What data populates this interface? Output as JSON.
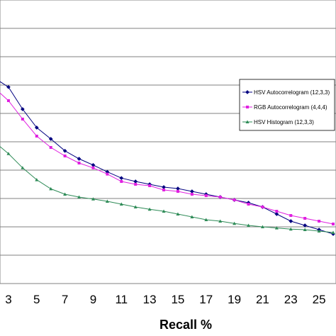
{
  "chart_data": {
    "type": "line",
    "xlabel": "Recall %",
    "x": [
      2,
      3,
      4,
      5,
      6,
      7,
      8,
      9,
      10,
      11,
      12,
      13,
      14,
      15,
      16,
      17,
      18,
      19,
      20,
      21,
      22,
      23,
      24,
      25,
      26
    ],
    "x_ticks": [
      "3",
      "5",
      "7",
      "9",
      "11",
      "13",
      "15",
      "17",
      "19",
      "21",
      "23",
      "25"
    ],
    "xlim": [
      2.4,
      26.2
    ],
    "ylim": [
      0,
      1
    ],
    "grid": true,
    "legend_position": "right",
    "series": [
      {
        "name": "HSV Autocorrelogram (12,3,3)",
        "color": "#000080",
        "marker": "diamond",
        "values": [
          0.725,
          0.693,
          0.615,
          0.55,
          0.51,
          0.468,
          0.44,
          0.418,
          0.394,
          0.372,
          0.36,
          0.35,
          0.34,
          0.335,
          0.325,
          0.315,
          0.305,
          0.295,
          0.285,
          0.27,
          0.245,
          0.22,
          0.205,
          0.19,
          0.175
        ]
      },
      {
        "name": "RGB Autocorrelogram (4,4,4)",
        "color": "#e020e0",
        "marker": "square",
        "values": [
          0.69,
          0.645,
          0.58,
          0.52,
          0.48,
          0.45,
          0.425,
          0.408,
          0.386,
          0.36,
          0.35,
          0.345,
          0.33,
          0.325,
          0.315,
          0.31,
          0.305,
          0.295,
          0.28,
          0.27,
          0.255,
          0.24,
          0.23,
          0.22,
          0.21
        ]
      },
      {
        "name": "HSV Histogram (12,3,3)",
        "color": "#2e8b57",
        "marker": "triangle",
        "values": [
          0.5,
          0.458,
          0.408,
          0.366,
          0.334,
          0.315,
          0.305,
          0.298,
          0.29,
          0.28,
          0.27,
          0.262,
          0.255,
          0.245,
          0.235,
          0.225,
          0.22,
          0.212,
          0.205,
          0.2,
          0.196,
          0.192,
          0.19,
          0.185,
          0.18
        ]
      }
    ]
  }
}
